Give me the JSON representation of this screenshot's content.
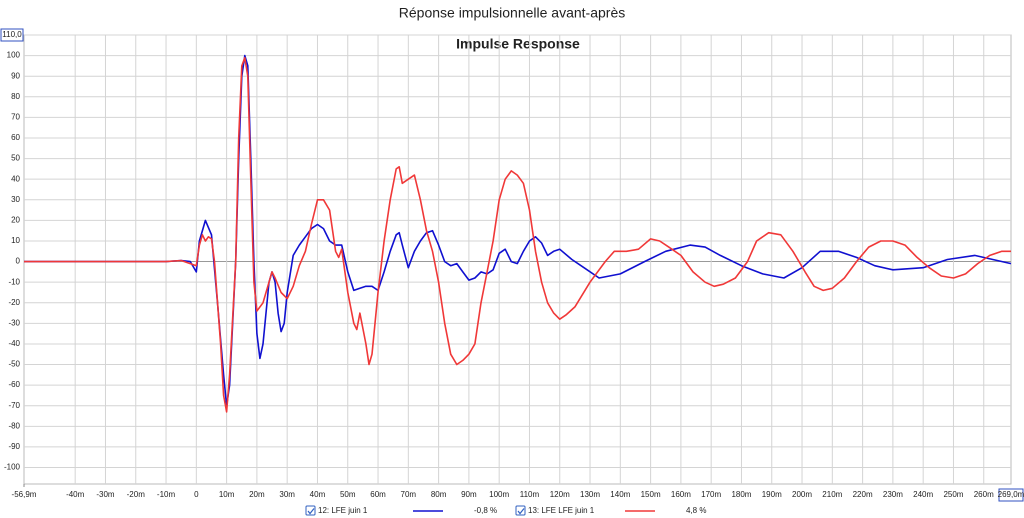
{
  "chart_data": {
    "type": "line",
    "title": "Réponse impulsionnelle avant-après",
    "subtitle": "Impulse Response",
    "xlim": [
      -56.9,
      269
    ],
    "ylim": [
      -108,
      110
    ],
    "grid": true,
    "xticks": [
      {
        "value": -56.9,
        "label": "-56,9m"
      },
      {
        "value": -40,
        "label": "-40m"
      },
      {
        "value": -30,
        "label": "-30m"
      },
      {
        "value": -20,
        "label": "-20m"
      },
      {
        "value": -10,
        "label": "-10m"
      },
      0,
      {
        "value": 10,
        "label": "10m"
      },
      {
        "value": 20,
        "label": "20m"
      },
      {
        "value": 30,
        "label": "30m"
      },
      {
        "value": 40,
        "label": "40m"
      },
      {
        "value": 50,
        "label": "50m"
      },
      {
        "value": 60,
        "label": "60m"
      },
      {
        "value": 70,
        "label": "70m"
      },
      {
        "value": 80,
        "label": "80m"
      },
      {
        "value": 90,
        "label": "90m"
      },
      {
        "value": 100,
        "label": "100m"
      },
      {
        "value": 110,
        "label": "110m"
      },
      {
        "value": 120,
        "label": "120m"
      },
      {
        "value": 130,
        "label": "130m"
      },
      {
        "value": 140,
        "label": "140m"
      },
      {
        "value": 150,
        "label": "150m"
      },
      {
        "value": 160,
        "label": "160m"
      },
      {
        "value": 170,
        "label": "170m"
      },
      {
        "value": 180,
        "label": "180m"
      },
      {
        "value": 190,
        "label": "190m"
      },
      {
        "value": 200,
        "label": "200m"
      },
      {
        "value": 210,
        "label": "210m"
      },
      {
        "value": 220,
        "label": "220m"
      },
      {
        "value": 230,
        "label": "230m"
      },
      {
        "value": 240,
        "label": "240m"
      },
      {
        "value": 250,
        "label": "250m"
      },
      {
        "value": 260,
        "label": "260m"
      },
      {
        "value": 269,
        "label": "269,0m"
      }
    ],
    "yticks": [
      {
        "value": 110,
        "label": "110,0"
      },
      100,
      90,
      80,
      70,
      60,
      50,
      40,
      30,
      20,
      10,
      0,
      -10,
      -20,
      -30,
      -40,
      -50,
      -60,
      -70,
      -80,
      -90,
      -100
    ],
    "series": [
      {
        "name": "12: LFE juin 1",
        "legend_value": "-0,8 %",
        "color": "#1010d0",
        "x": [
          -56.9,
          -40,
          -20,
          -10,
          -5,
          -2,
          0,
          1,
          3,
          5,
          7,
          9,
          10,
          11,
          13,
          14,
          15,
          16,
          17,
          18,
          19,
          20,
          21,
          22,
          24,
          25,
          26,
          27,
          28,
          29,
          30,
          32,
          34,
          36,
          38,
          40,
          42,
          44,
          46,
          48,
          50,
          52,
          54,
          56,
          58,
          60,
          62,
          64,
          66,
          67,
          68,
          70,
          72,
          74,
          76,
          78,
          80,
          82,
          84,
          86,
          88,
          90,
          92,
          94,
          96,
          98,
          100,
          102,
          104,
          106,
          108,
          110,
          112,
          114,
          116,
          118,
          120,
          124,
          128,
          133,
          140,
          148,
          155,
          163,
          168,
          173,
          180,
          187,
          194,
          200,
          206,
          212,
          218,
          224,
          230,
          240,
          248,
          257,
          263,
          269
        ],
        "values": [
          0,
          0,
          0,
          0,
          0.5,
          0,
          -5,
          10,
          20,
          13,
          -20,
          -55,
          -70,
          -60,
          0,
          50,
          90,
          100,
          95,
          50,
          0,
          -35,
          -47,
          -40,
          -10,
          -5,
          -10,
          -25,
          -34,
          -30,
          -15,
          3,
          8,
          12,
          16,
          18,
          16,
          10,
          8,
          8,
          -5,
          -14,
          -13,
          -12,
          -12,
          -14,
          -5,
          5,
          13,
          14,
          8,
          -3,
          5,
          10,
          14,
          15,
          8,
          0,
          -2,
          -1,
          -5,
          -9,
          -8,
          -5,
          -6,
          -4,
          4,
          6,
          0,
          -1,
          5,
          10,
          12,
          9,
          3,
          5,
          6,
          1,
          -3,
          -8,
          -6,
          0,
          5,
          8,
          7,
          3,
          -2,
          -6,
          -8,
          -3,
          5,
          5,
          2,
          -2,
          -4,
          -3,
          1,
          3,
          1,
          -1
        ]
      },
      {
        "name": "13: LFE LFE juin 1",
        "legend_value": "4,8 %",
        "color": "#f03838",
        "x": [
          -56.9,
          -20,
          -10,
          -5,
          0,
          1,
          2,
          3,
          4,
          5,
          6,
          8,
          9,
          10,
          11,
          13,
          14,
          15,
          16,
          17,
          18,
          19,
          20,
          22,
          23,
          24,
          25,
          26,
          28,
          30,
          32,
          34,
          36,
          38,
          40,
          42,
          44,
          46,
          47,
          48,
          50,
          52,
          53,
          54,
          56,
          57,
          58,
          60,
          62,
          64,
          66,
          67,
          68,
          70,
          72,
          74,
          76,
          78,
          80,
          82,
          84,
          86,
          88,
          90,
          92,
          94,
          96,
          98,
          100,
          102,
          104,
          106,
          108,
          110,
          112,
          114,
          116,
          118,
          120,
          122,
          125,
          130,
          135,
          138,
          142,
          146,
          150,
          153,
          156,
          160,
          164,
          168,
          171,
          174,
          178,
          182,
          185,
          189,
          193,
          197,
          201,
          204,
          207,
          210,
          214,
          218,
          222,
          226,
          230,
          234,
          238,
          242,
          246,
          250,
          254,
          258,
          262,
          266,
          269
        ],
        "values": [
          0,
          0,
          0,
          0.5,
          -2,
          8,
          13,
          10,
          12,
          11,
          0,
          -40,
          -65,
          -73,
          -55,
          0,
          60,
          95,
          99,
          90,
          40,
          -10,
          -24,
          -20,
          -15,
          -10,
          -5,
          -8,
          -15,
          -18,
          -12,
          -2,
          5,
          18,
          30,
          30,
          25,
          5,
          2,
          6,
          -15,
          -30,
          -33,
          -25,
          -40,
          -50,
          -45,
          -15,
          10,
          30,
          45,
          46,
          38,
          40,
          42,
          30,
          15,
          5,
          -10,
          -30,
          -45,
          -50,
          -48,
          -45,
          -40,
          -20,
          -5,
          10,
          30,
          40,
          44,
          42,
          38,
          25,
          5,
          -10,
          -20,
          -25,
          -28,
          -26,
          -22,
          -10,
          0,
          5,
          5,
          6,
          11,
          10,
          7,
          3,
          -5,
          -10,
          -12,
          -11,
          -8,
          0,
          10,
          14,
          13,
          5,
          -5,
          -12,
          -14,
          -13,
          -8,
          0,
          7,
          10,
          10,
          8,
          2,
          -3,
          -7,
          -8,
          -6,
          -1,
          3,
          5,
          5
        ]
      }
    ]
  }
}
